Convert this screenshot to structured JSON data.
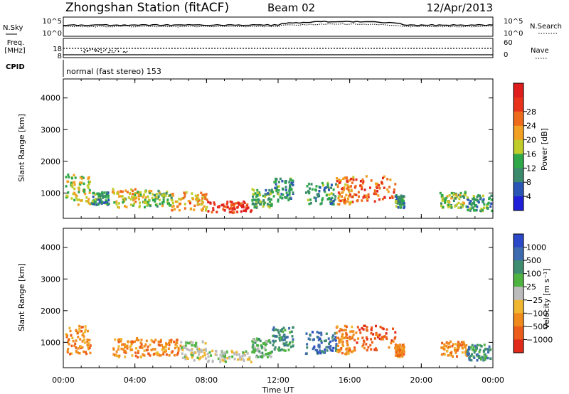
{
  "header": {
    "title": "Zhongshan Station (fitACF)",
    "beam": "Beam 02",
    "date": "12/Apr/2013"
  },
  "panels": {
    "sky_label": "N.Sky",
    "search_label": "N.Search",
    "sky_ticks": [
      "10^5",
      "10^0"
    ],
    "search_ticks": [
      "10^5",
      "10^0"
    ],
    "freq_label_1": "Freq.",
    "freq_label_2": "[MHz]",
    "freq_ticks": [
      "18",
      "8"
    ],
    "nave_label": "Nave",
    "nave_ticks": [
      "60",
      "0"
    ],
    "cpid_label": "CPID",
    "cpid_text": "normal (fast stereo) 153"
  },
  "colors": {
    "power": [
      "#1f1fd9",
      "#2a55b4",
      "#3b8a6e",
      "#2fa84a",
      "#bfcc2a",
      "#f1a023",
      "#ef6b1c",
      "#e8321a",
      "#df1d1d"
    ],
    "velocity": [
      "#2a48c7",
      "#3e6aaf",
      "#3f8d70",
      "#4fb342",
      "#bcbcbc",
      "#f0b630",
      "#f08a1c",
      "#ec5c1a",
      "#e12a1a"
    ],
    "ground_scatter": "#b4b4b4"
  },
  "chart_data": [
    {
      "type": "heatmap",
      "name": "power",
      "ylabel": "Slant Range [km]",
      "yticks": [
        1000,
        2000,
        3000,
        4000
      ],
      "ylim": [
        200,
        4600
      ],
      "xlim": [
        0,
        24
      ],
      "xticks": [
        "00:00",
        "04:00",
        "08:00",
        "12:00",
        "16:00",
        "20:00",
        "00:00"
      ],
      "colorbar": {
        "label": "Power [dB]",
        "ticks": [
          "4",
          "8",
          "12",
          "16",
          "20",
          "24",
          "28"
        ],
        "range": [
          0,
          30
        ]
      },
      "scatter_regions": [
        {
          "t": [
            0.1,
            1.5
          ],
          "r": [
            600,
            1550
          ],
          "level": 14
        },
        {
          "t": [
            1.5,
            2.5
          ],
          "r": [
            600,
            1000
          ],
          "level": 8
        },
        {
          "t": [
            2.7,
            4.5
          ],
          "r": [
            500,
            1100
          ],
          "level": 16
        },
        {
          "t": [
            4.5,
            6.0
          ],
          "r": [
            550,
            1050
          ],
          "level": 12
        },
        {
          "t": [
            6.0,
            8.0
          ],
          "r": [
            400,
            1000
          ],
          "level": 18
        },
        {
          "t": [
            8.0,
            10.5
          ],
          "r": [
            350,
            700
          ],
          "level": 26
        },
        {
          "t": [
            10.5,
            11.6
          ],
          "r": [
            500,
            1100
          ],
          "level": 10
        },
        {
          "t": [
            11.6,
            12.8
          ],
          "r": [
            700,
            1450
          ],
          "level": 8
        },
        {
          "t": [
            13.5,
            15.2
          ],
          "r": [
            600,
            1300
          ],
          "level": 8
        },
        {
          "t": [
            15.2,
            16.2
          ],
          "r": [
            600,
            1500
          ],
          "level": 20
        },
        {
          "t": [
            16.2,
            18.5
          ],
          "r": [
            700,
            1500
          ],
          "level": 22
        },
        {
          "t": [
            18.5,
            19.0
          ],
          "r": [
            500,
            900
          ],
          "level": 8
        },
        {
          "t": [
            21.0,
            22.5
          ],
          "r": [
            500,
            1000
          ],
          "level": 12
        },
        {
          "t": [
            22.5,
            23.9
          ],
          "r": [
            400,
            900
          ],
          "level": 8
        }
      ]
    },
    {
      "type": "heatmap",
      "name": "velocity",
      "ylabel": "Slant Range [km]",
      "xlabel": "Time UT",
      "yticks": [
        1000,
        2000,
        3000,
        4000
      ],
      "ylim": [
        200,
        4600
      ],
      "xlim": [
        0,
        24
      ],
      "xticks": [
        "00:00",
        "04:00",
        "08:00",
        "12:00",
        "16:00",
        "20:00",
        "00:00"
      ],
      "colorbar": {
        "label": "Velocity [m s⁻¹]",
        "ticks": [
          "1000",
          "500",
          "100",
          "25",
          "−25",
          "−100",
          "−500",
          "−1000"
        ]
      },
      "scatter_regions": [
        {
          "t": [
            0.1,
            1.5
          ],
          "r": [
            600,
            1550
          ],
          "level": 6
        },
        {
          "t": [
            2.7,
            4.5
          ],
          "r": [
            500,
            1100
          ],
          "level": 6
        },
        {
          "t": [
            4.5,
            6.5
          ],
          "r": [
            550,
            1050
          ],
          "level": 6
        },
        {
          "t": [
            6.5,
            8.0
          ],
          "r": [
            400,
            1000
          ],
          "level": 4
        },
        {
          "t": [
            8.0,
            10.5
          ],
          "r": [
            350,
            700
          ],
          "level": 4
        },
        {
          "t": [
            10.5,
            11.6
          ],
          "r": [
            500,
            1100
          ],
          "level": 3
        },
        {
          "t": [
            11.6,
            12.8
          ],
          "r": [
            700,
            1450
          ],
          "level": 2
        },
        {
          "t": [
            13.5,
            15.2
          ],
          "r": [
            600,
            1300
          ],
          "level": 1
        },
        {
          "t": [
            15.2,
            16.2
          ],
          "r": [
            600,
            1500
          ],
          "level": 6
        },
        {
          "t": [
            16.2,
            18.5
          ],
          "r": [
            700,
            1500
          ],
          "level": 7
        },
        {
          "t": [
            18.5,
            19.0
          ],
          "r": [
            500,
            900
          ],
          "level": 6
        },
        {
          "t": [
            21.0,
            22.5
          ],
          "r": [
            500,
            1000
          ],
          "level": 6
        },
        {
          "t": [
            22.5,
            23.9
          ],
          "r": [
            400,
            900
          ],
          "level": 2
        }
      ]
    }
  ]
}
